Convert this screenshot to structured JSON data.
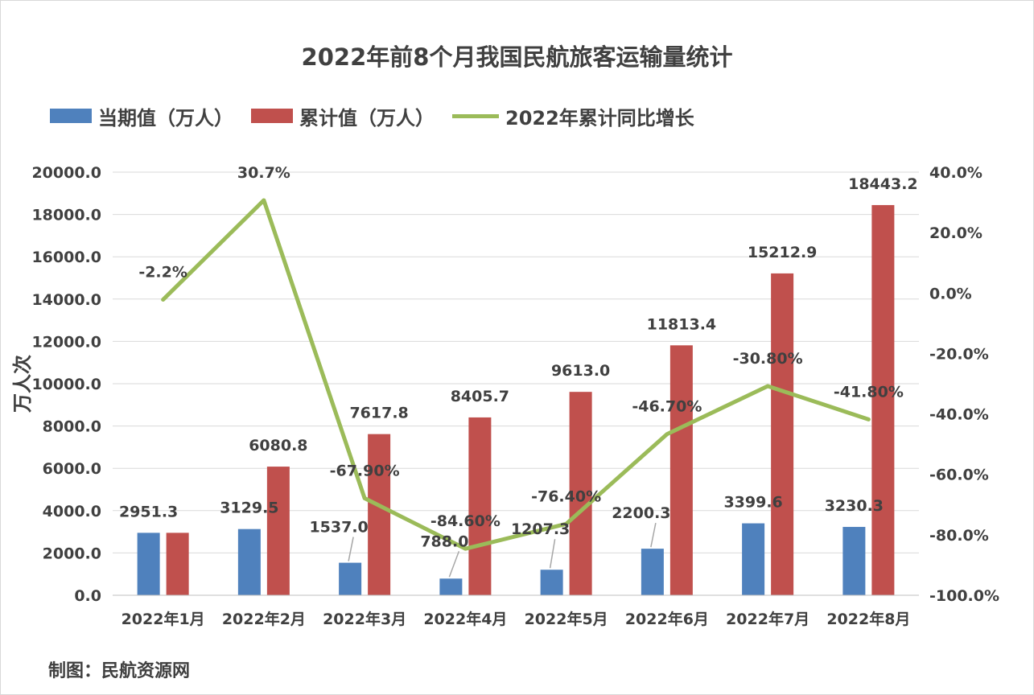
{
  "chart_data": {
    "type": "bar",
    "title": "2022年前8个月我国民航旅客运输量统计",
    "categories": [
      "2022年1月",
      "2022年2月",
      "2022年3月",
      "2022年4月",
      "2022年5月",
      "2022年6月",
      "2022年7月",
      "2022年8月"
    ],
    "series": [
      {
        "name": "当期值（万人）",
        "type": "bar",
        "axis": "left",
        "color": "#4f81bd",
        "values": [
          2951.3,
          3129.5,
          1537.0,
          788.0,
          1207.3,
          2200.3,
          3399.6,
          3230.3
        ],
        "labels": [
          "2951.3",
          "3129.5",
          "1537.0",
          "788.0",
          "1207.3",
          "2200.3",
          "3399.6",
          "3230.3"
        ]
      },
      {
        "name": "累计值（万人）",
        "type": "bar",
        "axis": "left",
        "color": "#c0504d",
        "values": [
          2951.3,
          6080.8,
          7617.8,
          8405.7,
          9613.0,
          11813.4,
          15212.9,
          18443.2
        ],
        "labels": [
          "",
          "6080.8",
          "7617.8",
          "8405.7",
          "9613.0",
          "11813.4",
          "15212.9",
          "18443.2"
        ]
      },
      {
        "name": "2022年累计同比增长",
        "type": "line",
        "axis": "right",
        "color": "#9bbb59",
        "values": [
          -2.2,
          30.7,
          -67.9,
          -84.6,
          -76.4,
          -46.7,
          -30.8,
          -41.8
        ],
        "labels": [
          "-2.2%",
          "30.7%",
          "-67.90%",
          "-84.60%",
          "-76.40%",
          "-46.70%",
          "-30.80%",
          "-41.80%"
        ]
      }
    ],
    "ylabel": "万人次",
    "ylim": [
      0,
      20000
    ],
    "yticks": [
      "0.0",
      "2000.0",
      "4000.0",
      "6000.0",
      "8000.0",
      "10000.0",
      "12000.0",
      "14000.0",
      "16000.0",
      "18000.0",
      "20000.0"
    ],
    "y2lim": [
      -100,
      40
    ],
    "y2ticks": [
      "-100.0%",
      "-80.0%",
      "-60.0%",
      "-40.0%",
      "-20.0%",
      "0.0%",
      "20.0%",
      "40.0%"
    ],
    "grid": true,
    "legend_position": "top-left"
  },
  "footer": {
    "credit": "制图：民航资源网"
  }
}
